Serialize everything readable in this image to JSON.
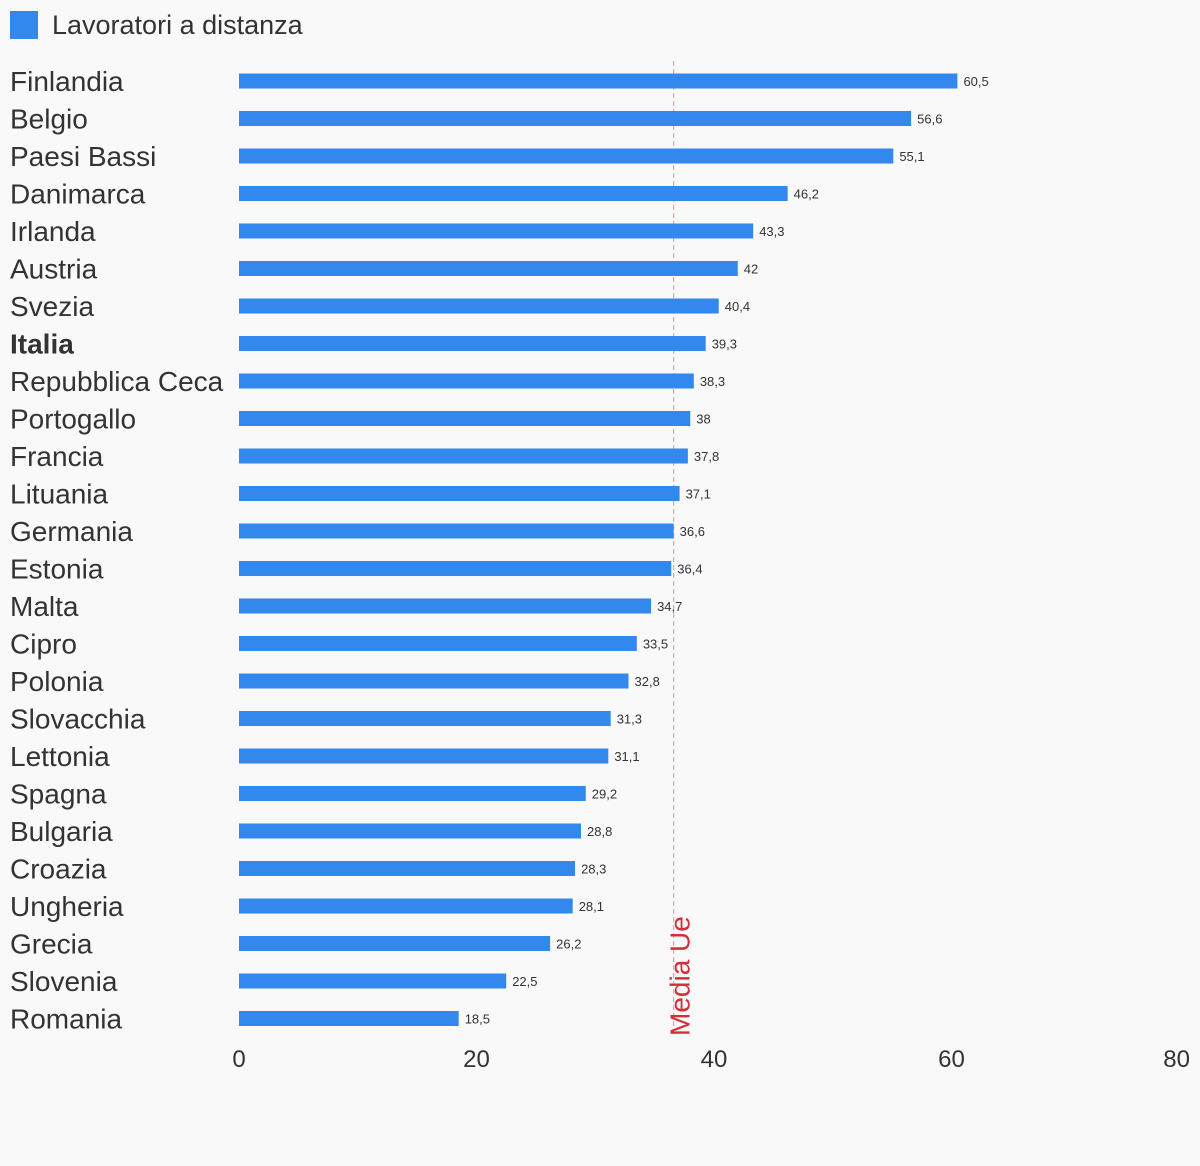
{
  "legend": {
    "label": "Lavoratori a distanza",
    "color": "#3388ee",
    "icon": "square-swatch"
  },
  "colors": {
    "bar": "#3388ee",
    "reference_line": "#e8a3a8",
    "reference_text": "#d32f3a",
    "background": "#f9f9f9",
    "text": "#333333"
  },
  "chart_data": {
    "type": "bar",
    "orientation": "horizontal",
    "categories": [
      "Finlandia",
      "Belgio",
      "Paesi Bassi",
      "Danimarca",
      "Irlanda",
      "Austria",
      "Svezia",
      "Italia",
      "Repubblica Ceca",
      "Portogallo",
      "Francia",
      "Lituania",
      "Germania",
      "Estonia",
      "Malta",
      "Cipro",
      "Polonia",
      "Slovacchia",
      "Lettonia",
      "Spagna",
      "Bulgaria",
      "Croazia",
      "Ungheria",
      "Grecia",
      "Slovenia",
      "Romania"
    ],
    "value_labels": [
      "60,5",
      "56,6",
      "55,1",
      "46,2",
      "43,3",
      "42",
      "40,4",
      "39,3",
      "38,3",
      "38",
      "37,8",
      "37,1",
      "36,6",
      "36,4",
      "34,7",
      "33,5",
      "32,8",
      "31,3",
      "31,1",
      "29,2",
      "28,8",
      "28,3",
      "28,1",
      "26,2",
      "22,5",
      "18,5"
    ],
    "series": [
      {
        "name": "Lavoratori a distanza",
        "values": [
          60.5,
          56.6,
          55.1,
          46.2,
          43.3,
          42,
          40.4,
          39.3,
          38.3,
          38,
          37.8,
          37.1,
          36.6,
          36.4,
          34.7,
          33.5,
          32.8,
          31.3,
          31.1,
          29.2,
          28.8,
          28.3,
          28.1,
          26.2,
          22.5,
          18.5
        ]
      }
    ],
    "highlighted_category": "Italia",
    "xlim": [
      0,
      80
    ],
    "x_ticks": [
      "0",
      "20",
      "40",
      "60",
      "80"
    ],
    "reference_line": {
      "value": 36.6,
      "label": "Media Ue",
      "style": "dashed"
    },
    "grid": false,
    "legend_position": "top-left",
    "title": "",
    "xlabel": "",
    "ylabel": ""
  }
}
